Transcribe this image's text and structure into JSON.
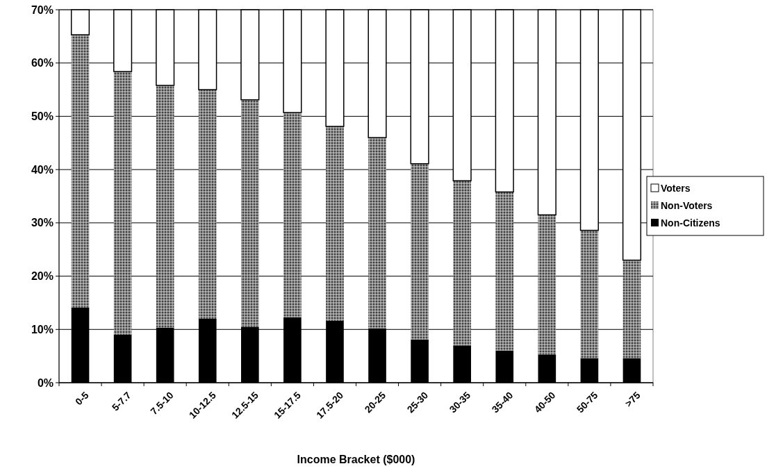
{
  "chart_data": {
    "type": "bar",
    "stacked": true,
    "xlabel": "Income Bracket ($000)",
    "categories": [
      "0-5",
      "5-7.7",
      "7.5-10",
      "10-12.5",
      "12.5-15",
      "15-17.5",
      "17.5-20",
      "20-25",
      "25-30",
      "30-35",
      "35-40",
      "40-50",
      "50-75",
      ">75"
    ],
    "series": [
      {
        "name": "Non-Citizens",
        "color": "#000000",
        "values": [
          14.1,
          9.0,
          10.3,
          12.0,
          10.5,
          12.3,
          11.6,
          10.2,
          8.1,
          7.0,
          6.0,
          5.3,
          4.6,
          4.6
        ]
      },
      {
        "name": "Non-Voters",
        "color": "#404040",
        "values": [
          51.2,
          49.4,
          45.5,
          43.0,
          42.6,
          38.4,
          36.5,
          35.8,
          33.0,
          30.9,
          29.8,
          26.2,
          24.0,
          18.4
        ]
      },
      {
        "name": "Voters",
        "color": "#ffffff",
        "values": [
          4.7,
          11.6,
          14.2,
          15.0,
          16.9,
          19.3,
          21.9,
          24.0,
          28.9,
          32.1,
          34.2,
          38.5,
          41.4,
          47.0
        ]
      }
    ],
    "ylim": [
      0,
      70
    ],
    "yticks": [
      {
        "value": 0,
        "label": "0%"
      },
      {
        "value": 10,
        "label": "10%"
      },
      {
        "value": 20,
        "label": "20%"
      },
      {
        "value": 30,
        "label": "30%"
      },
      {
        "value": 40,
        "label": "40%"
      },
      {
        "value": 50,
        "label": "50%"
      },
      {
        "value": 60,
        "label": "60%"
      },
      {
        "value": 70,
        "label": "70%"
      }
    ],
    "grid": "y",
    "legend": "right"
  }
}
